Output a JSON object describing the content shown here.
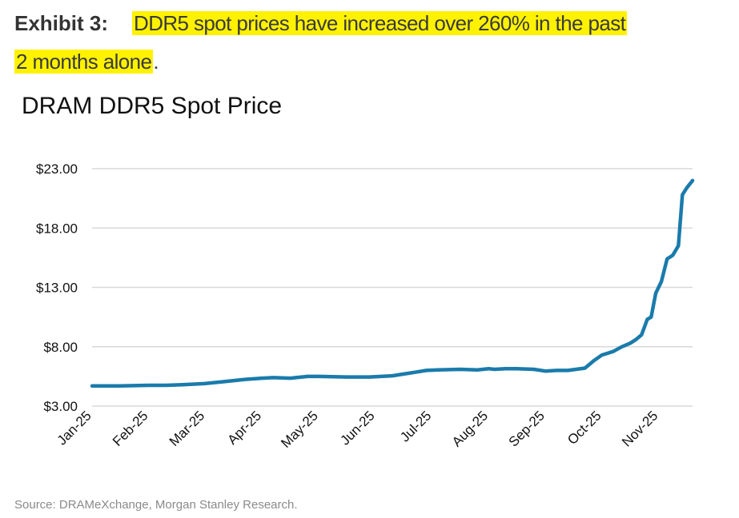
{
  "header": {
    "exhibit_label": "Exhibit 3:",
    "headline_part1": "DDR5 spot prices have increased over 260% in the past",
    "headline_part2": "2 months alone",
    "headline_end": ".",
    "highlight_color": "#fff200"
  },
  "chart_data": {
    "type": "line",
    "title": "DRAM DDR5 Spot Price",
    "xlabel": "",
    "ylabel": "",
    "ylim": [
      3,
      23
    ],
    "yticks": [
      3,
      8,
      13,
      18,
      23
    ],
    "ytick_labels": [
      "$3.00",
      "$8.00",
      "$13.00",
      "$18.00",
      "$23.00"
    ],
    "xtick_labels": [
      "Jan-25",
      "Feb-25",
      "Mar-25",
      "Apr-25",
      "May-25",
      "Jun-25",
      "Jul-25",
      "Aug-25",
      "Sep-25",
      "Oct-25",
      "Nov-25"
    ],
    "xlim_months": [
      0,
      10.6
    ],
    "grid": true,
    "legend": "none",
    "series": [
      {
        "name": "DDR5 spot price",
        "color": "#1a7bab",
        "x_months": [
          0,
          0.5,
          1,
          1.3,
          1.6,
          2,
          2.3,
          2.5,
          2.7,
          3,
          3.2,
          3.5,
          3.7,
          3.8,
          4,
          4.5,
          4.9,
          5.1,
          5.3,
          5.5,
          5.7,
          5.9,
          6.1,
          6.5,
          6.8,
          7,
          7.1,
          7.3,
          7.5,
          7.8,
          8,
          8.2,
          8.4,
          8.7,
          8.85,
          9,
          9.2,
          9.35,
          9.5,
          9.6,
          9.7,
          9.8,
          9.87,
          9.95,
          10.05,
          10.15,
          10.25,
          10.35,
          10.42,
          10.5,
          10.6
        ],
        "values": [
          4.7,
          4.7,
          4.75,
          4.75,
          4.8,
          4.9,
          5.05,
          5.15,
          5.25,
          5.35,
          5.4,
          5.35,
          5.45,
          5.5,
          5.5,
          5.45,
          5.45,
          5.5,
          5.55,
          5.7,
          5.85,
          6.0,
          6.05,
          6.1,
          6.05,
          6.15,
          6.1,
          6.15,
          6.15,
          6.1,
          5.95,
          6.0,
          6.0,
          6.2,
          6.8,
          7.3,
          7.6,
          8.0,
          8.3,
          8.6,
          9.0,
          10.3,
          10.5,
          12.5,
          13.5,
          15.4,
          15.7,
          16.5,
          20.8,
          21.4,
          22.0
        ]
      }
    ]
  },
  "footer": {
    "source": "Source: DRAMeXchange, Morgan Stanley Research."
  }
}
